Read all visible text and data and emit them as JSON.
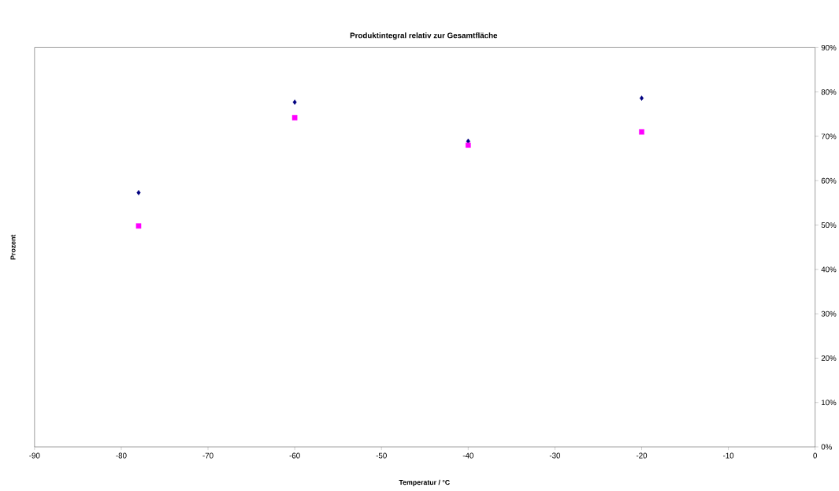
{
  "chart_data": {
    "type": "scatter",
    "title": "Produktintegral relativ zur Gesamtfläche",
    "xlabel": "Temperatur / °C",
    "ylabel": "Prozent",
    "x": [
      -78,
      -60,
      -40,
      -20
    ],
    "series": [
      {
        "color": "#000080",
        "marker": "diamond",
        "values": [
          57.3,
          77.7,
          68.9,
          78.6
        ]
      },
      {
        "color": "#ff00ff",
        "marker": "square",
        "values": [
          49.8,
          74.2,
          68.0,
          71.0
        ]
      }
    ],
    "xlim": [
      -90,
      0
    ],
    "xticks": [
      -90,
      -80,
      -70,
      -60,
      -50,
      -40,
      -30,
      -20,
      -10,
      0
    ],
    "ylim": [
      0,
      90
    ],
    "yticks": [
      {
        "value": 0,
        "label": "0%"
      },
      {
        "value": 10,
        "label": "10%"
      },
      {
        "value": 20,
        "label": "20%"
      },
      {
        "value": 30,
        "label": "30%"
      },
      {
        "value": 40,
        "label": "40%"
      },
      {
        "value": 50,
        "label": "50%"
      },
      {
        "value": 60,
        "label": "60%"
      },
      {
        "value": 70,
        "label": "70%"
      },
      {
        "value": 80,
        "label": "80%"
      },
      {
        "value": 90,
        "label": "90%"
      }
    ]
  }
}
